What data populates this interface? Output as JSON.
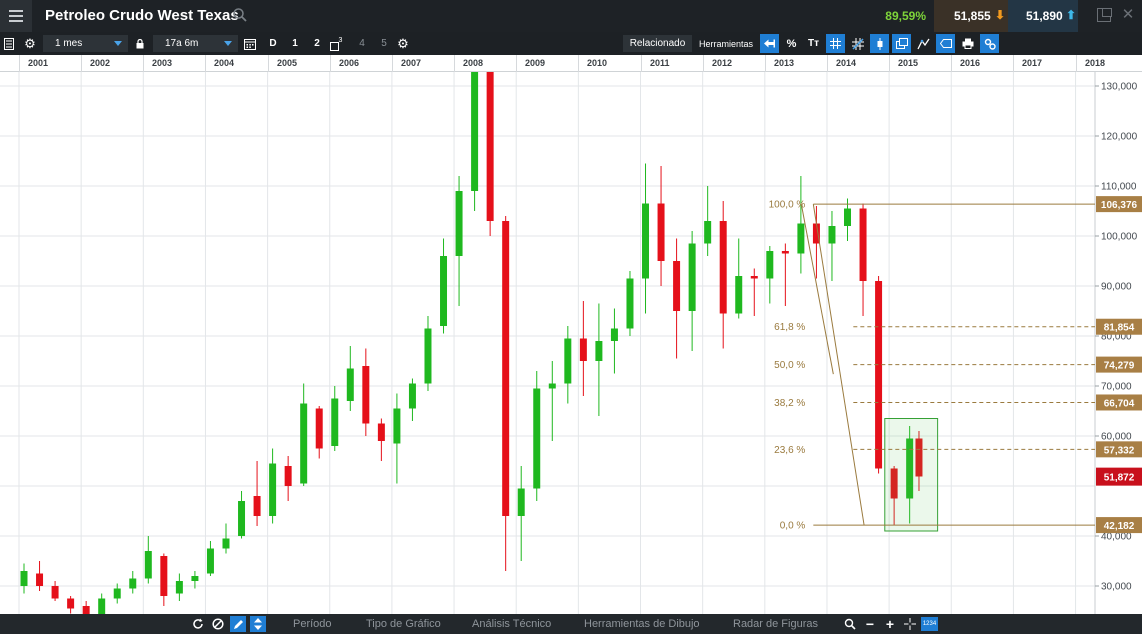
{
  "header": {
    "instrument_title": "Petroleo Crudo West Texas",
    "change_pct": "89,59%",
    "sell_price": "51,855",
    "buy_price": "51,890"
  },
  "toolbar": {
    "interval": "1 mes",
    "range": "17a 6m",
    "d_label": "D",
    "btn_1": "1",
    "btn_2": "2",
    "btn_3_sup": "3",
    "btn_4": "4",
    "btn_5": "5",
    "relacionado": "Relacionado",
    "herramientas": "Herramientas",
    "percent_tool": "%",
    "text_tool": "Tт"
  },
  "bottom": {
    "periodo": "Período",
    "tipo_grafico": "Tipo de Gráfico",
    "analisis_tecnico": "Análisis Técnico",
    "herramientas_dibujo": "Herramientas de Dibujo",
    "radar_figuras": "Radar de Figuras",
    "badge": "1234"
  },
  "chart_data": {
    "type": "candlestick",
    "x_labels": [
      "2001",
      "2002",
      "2003",
      "2004",
      "2005",
      "2006",
      "2007",
      "2008",
      "2009",
      "2010",
      "2011",
      "2012",
      "2013",
      "2014",
      "2015",
      "2016",
      "2017",
      "2018"
    ],
    "y_ticks": [
      "130,000",
      "120,000",
      "110,000",
      "100,000",
      "90,000",
      "80,000",
      "70,000",
      "60,000",
      "40,000",
      "30,000"
    ],
    "ylim": [
      23,
      133
    ],
    "grid": true,
    "series": [
      {
        "year": 2001.0,
        "o": 30.0,
        "h": 34.5,
        "l": 28.5,
        "c": 33.0
      },
      {
        "year": 2001.25,
        "o": 32.5,
        "h": 35.0,
        "l": 29.0,
        "c": 30.0
      },
      {
        "year": 2001.5,
        "o": 30.0,
        "h": 31.0,
        "l": 27.0,
        "c": 27.5
      },
      {
        "year": 2001.75,
        "o": 27.5,
        "h": 28.0,
        "l": 24.5,
        "c": 25.5
      },
      {
        "year": 2002.0,
        "o": 26.0,
        "h": 27.0,
        "l": 23.5,
        "c": 24.0
      },
      {
        "year": 2002.25,
        "o": 23.8,
        "h": 28.5,
        "l": 22.0,
        "c": 27.5
      },
      {
        "year": 2002.5,
        "o": 27.5,
        "h": 30.5,
        "l": 26.5,
        "c": 29.5
      },
      {
        "year": 2002.75,
        "o": 29.5,
        "h": 33.0,
        "l": 28.5,
        "c": 31.5
      },
      {
        "year": 2003.0,
        "o": 31.5,
        "h": 40.0,
        "l": 30.5,
        "c": 37.0
      },
      {
        "year": 2003.25,
        "o": 36.0,
        "h": 36.5,
        "l": 26.0,
        "c": 28.0
      },
      {
        "year": 2003.5,
        "o": 28.5,
        "h": 32.5,
        "l": 27.0,
        "c": 31.0
      },
      {
        "year": 2003.75,
        "o": 31.0,
        "h": 33.0,
        "l": 29.5,
        "c": 32.0
      },
      {
        "year": 2004.0,
        "o": 32.5,
        "h": 39.0,
        "l": 32.0,
        "c": 37.5
      },
      {
        "year": 2004.25,
        "o": 37.5,
        "h": 42.5,
        "l": 36.5,
        "c": 39.5
      },
      {
        "year": 2004.5,
        "o": 40.0,
        "h": 49.0,
        "l": 39.5,
        "c": 47.0
      },
      {
        "year": 2004.75,
        "o": 48.0,
        "h": 55.0,
        "l": 42.0,
        "c": 44.0
      },
      {
        "year": 2005.0,
        "o": 44.0,
        "h": 57.5,
        "l": 42.5,
        "c": 54.5
      },
      {
        "year": 2005.25,
        "o": 54.0,
        "h": 56.0,
        "l": 47.0,
        "c": 50.0
      },
      {
        "year": 2005.5,
        "o": 50.5,
        "h": 70.5,
        "l": 50.0,
        "c": 66.5
      },
      {
        "year": 2005.75,
        "o": 65.5,
        "h": 66.0,
        "l": 55.5,
        "c": 57.5
      },
      {
        "year": 2006.0,
        "o": 58.0,
        "h": 70.0,
        "l": 57.0,
        "c": 67.5
      },
      {
        "year": 2006.25,
        "o": 67.0,
        "h": 78.0,
        "l": 65.0,
        "c": 73.5
      },
      {
        "year": 2006.5,
        "o": 74.0,
        "h": 77.5,
        "l": 60.0,
        "c": 62.5
      },
      {
        "year": 2006.75,
        "o": 62.5,
        "h": 63.5,
        "l": 55.0,
        "c": 59.0
      },
      {
        "year": 2007.0,
        "o": 58.5,
        "h": 68.5,
        "l": 50.5,
        "c": 65.5
      },
      {
        "year": 2007.25,
        "o": 65.5,
        "h": 71.5,
        "l": 63.0,
        "c": 70.5
      },
      {
        "year": 2007.5,
        "o": 70.5,
        "h": 84.0,
        "l": 69.0,
        "c": 81.5
      },
      {
        "year": 2007.75,
        "o": 82.0,
        "h": 99.5,
        "l": 80.5,
        "c": 96.0
      },
      {
        "year": 2008.0,
        "o": 96.0,
        "h": 112.0,
        "l": 86.0,
        "c": 109.0
      },
      {
        "year": 2008.25,
        "o": 109.0,
        "h": 135.0,
        "l": 105.0,
        "c": 133.0
      },
      {
        "year": 2008.5,
        "o": 133.0,
        "h": 136.0,
        "l": 100.0,
        "c": 103.0
      },
      {
        "year": 2008.75,
        "o": 103.0,
        "h": 104.0,
        "l": 33.0,
        "c": 44.0
      },
      {
        "year": 2009.0,
        "o": 44.0,
        "h": 54.0,
        "l": 35.0,
        "c": 49.5
      },
      {
        "year": 2009.25,
        "o": 49.5,
        "h": 73.0,
        "l": 47.0,
        "c": 69.5
      },
      {
        "year": 2009.5,
        "o": 69.5,
        "h": 75.0,
        "l": 59.0,
        "c": 70.5
      },
      {
        "year": 2009.75,
        "o": 70.5,
        "h": 82.0,
        "l": 66.5,
        "c": 79.5
      },
      {
        "year": 2010.0,
        "o": 79.5,
        "h": 87.0,
        "l": 68.0,
        "c": 75.0
      },
      {
        "year": 2010.25,
        "o": 75.0,
        "h": 86.5,
        "l": 64.0,
        "c": 79.0
      },
      {
        "year": 2010.5,
        "o": 79.0,
        "h": 85.5,
        "l": 72.5,
        "c": 81.5
      },
      {
        "year": 2010.75,
        "o": 81.5,
        "h": 93.0,
        "l": 80.0,
        "c": 91.5
      },
      {
        "year": 2011.0,
        "o": 91.5,
        "h": 114.5,
        "l": 84.5,
        "c": 106.5
      },
      {
        "year": 2011.25,
        "o": 106.5,
        "h": 114.0,
        "l": 90.0,
        "c": 95.0
      },
      {
        "year": 2011.5,
        "o": 95.0,
        "h": 99.5,
        "l": 75.5,
        "c": 85.0
      },
      {
        "year": 2011.75,
        "o": 85.0,
        "h": 101.0,
        "l": 77.0,
        "c": 98.5
      },
      {
        "year": 2012.0,
        "o": 98.5,
        "h": 110.0,
        "l": 96.0,
        "c": 103.0
      },
      {
        "year": 2012.25,
        "o": 103.0,
        "h": 107.0,
        "l": 77.5,
        "c": 84.5
      },
      {
        "year": 2012.5,
        "o": 84.5,
        "h": 99.5,
        "l": 83.5,
        "c": 92.0
      },
      {
        "year": 2012.75,
        "o": 92.0,
        "h": 93.5,
        "l": 84.0,
        "c": 91.5
      },
      {
        "year": 2013.0,
        "o": 91.5,
        "h": 98.0,
        "l": 86.5,
        "c": 97.0
      },
      {
        "year": 2013.25,
        "o": 97.0,
        "h": 98.5,
        "l": 86.0,
        "c": 96.5
      },
      {
        "year": 2013.5,
        "o": 96.5,
        "h": 112.0,
        "l": 92.5,
        "c": 102.5
      },
      {
        "year": 2013.75,
        "o": 102.5,
        "h": 106.0,
        "l": 91.5,
        "c": 98.5
      },
      {
        "year": 2014.0,
        "o": 98.5,
        "h": 105.0,
        "l": 91.0,
        "c": 102.0
      },
      {
        "year": 2014.25,
        "o": 102.0,
        "h": 107.5,
        "l": 99.0,
        "c": 105.5
      },
      {
        "year": 2014.5,
        "o": 105.5,
        "h": 106.5,
        "l": 84.0,
        "c": 91.0
      },
      {
        "year": 2014.75,
        "o": 91.0,
        "h": 92.0,
        "l": 52.5,
        "c": 53.5
      },
      {
        "year": 2015.0,
        "o": 53.5,
        "h": 54.0,
        "l": 42.2,
        "c": 47.5
      },
      {
        "year": 2015.25,
        "o": 47.5,
        "h": 62.0,
        "l": 42.5,
        "c": 59.5
      },
      {
        "year": 2015.4,
        "o": 59.5,
        "h": 61.0,
        "l": 49.0,
        "c": 51.9
      }
    ],
    "fibonacci": {
      "levels": [
        {
          "label": "100,0 %",
          "value": 106.376,
          "tag": "106,376"
        },
        {
          "label": "61,8 %",
          "value": 81.854,
          "tag": "81,854"
        },
        {
          "label": "50,0 %",
          "value": 74.279,
          "tag": "74,279"
        },
        {
          "label": "38,2 %",
          "value": 66.704,
          "tag": "66,704"
        },
        {
          "label": "23,6 %",
          "value": 57.332,
          "tag": "57,332"
        },
        {
          "label": "0,0 %",
          "value": 42.182,
          "tag": "42,182"
        }
      ],
      "start_year": 2013.7,
      "end_year": 2015.45
    },
    "current_price_tag": {
      "value": 51.872,
      "label": "51,872"
    },
    "colors": {
      "up": "#1fb81f",
      "down": "#e5101a",
      "fib": "#9a7a3e",
      "tag": "#a87f45",
      "current": "#c8101c",
      "box": "#35a035"
    }
  }
}
